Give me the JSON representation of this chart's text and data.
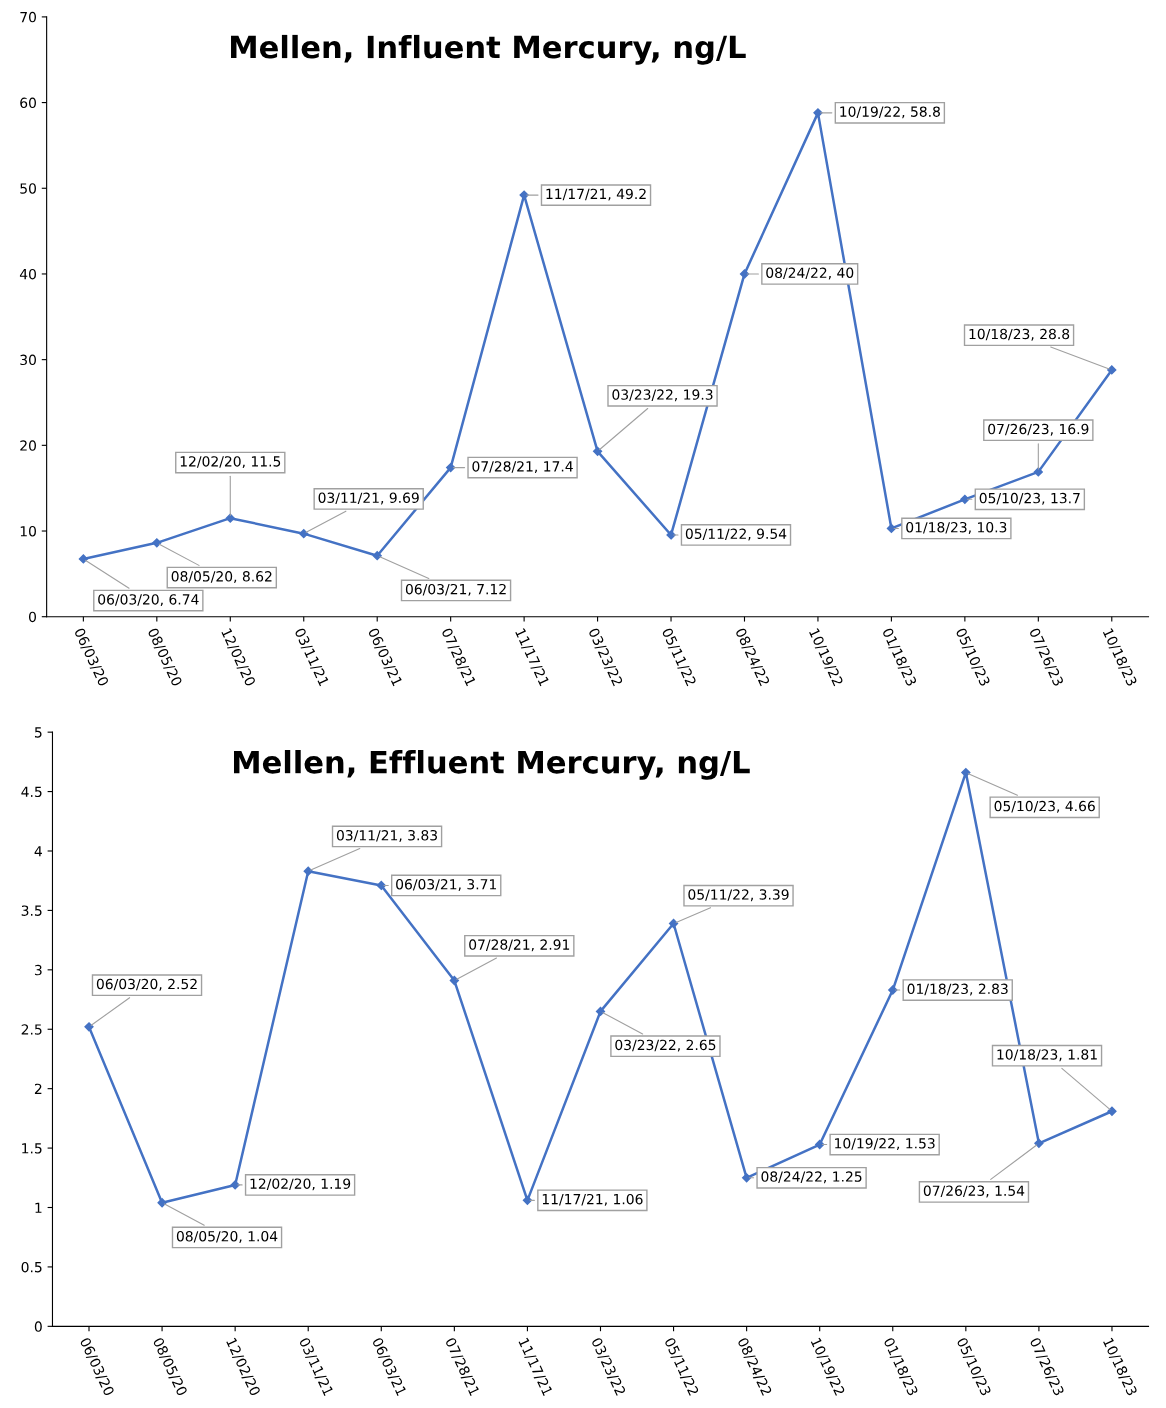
{
  "chart_data": [
    {
      "type": "line",
      "title": "Mellen, Influent Mercury, ng/L",
      "categories": [
        "06/03/20",
        "08/05/20",
        "12/02/20",
        "03/11/21",
        "06/03/21",
        "07/28/21",
        "11/17/21",
        "03/23/22",
        "05/11/22",
        "08/24/22",
        "10/19/22",
        "01/18/23",
        "05/10/23",
        "07/26/23",
        "10/18/23"
      ],
      "ylim": [
        0,
        70
      ],
      "yticks": [
        0,
        10,
        20,
        30,
        40,
        50,
        60,
        70
      ],
      "marker": "diamond",
      "grid": false,
      "series": [
        {
          "color": "#4472c4",
          "values": [
            6.74,
            8.62,
            11.5,
            9.69,
            7.12,
            17.4,
            49.2,
            19.3,
            9.54,
            40,
            58.8,
            10.3,
            13.7,
            16.9,
            28.8
          ],
          "value_labels": [
            "06/03/20, 6.74",
            "08/05/20, 8.62",
            "12/02/20, 11.5",
            "03/11/21, 9.69",
            "06/03/21, 7.12",
            "07/28/21, 17.4",
            "11/17/21, 49.2",
            "03/23/22, 19.3",
            "05/11/22, 9.54",
            "08/24/22, 40",
            "10/19/22, 58.8",
            "01/18/23, 10.3",
            "05/10/23, 13.7",
            "07/26/23, 16.9",
            "10/18/23, 28.8"
          ]
        }
      ]
    },
    {
      "type": "line",
      "title": "Mellen, Effluent Mercury, ng/L",
      "categories": [
        "06/03/20",
        "08/05/20",
        "12/02/20",
        "03/11/21",
        "06/03/21",
        "07/28/21",
        "11/17/21",
        "03/23/22",
        "05/11/22",
        "08/24/22",
        "10/19/22",
        "01/18/23",
        "05/10/23",
        "07/26/23",
        "10/18/23"
      ],
      "ylim": [
        0,
        5
      ],
      "yticks": [
        0,
        0.5,
        1,
        1.5,
        2,
        2.5,
        3,
        3.5,
        4,
        4.5,
        5
      ],
      "marker": "diamond",
      "grid": false,
      "series": [
        {
          "color": "#4472c4",
          "values": [
            2.52,
            1.04,
            1.19,
            3.83,
            3.71,
            2.91,
            1.06,
            2.65,
            3.39,
            1.25,
            1.53,
            2.83,
            4.66,
            1.54,
            1.81
          ],
          "value_labels": [
            "06/03/20, 2.52",
            "08/05/20, 1.04",
            "12/02/20, 1.19",
            "03/11/21, 3.83",
            "06/03/21, 3.71",
            "07/28/21, 2.91",
            "11/17/21, 1.06",
            "03/23/22, 2.65",
            "05/11/22, 3.39",
            "08/24/22, 1.25",
            "10/19/22, 1.53",
            "01/18/23, 2.83",
            "05/10/23, 4.66",
            "07/26/23, 1.54",
            "10/18/23, 1.81"
          ]
        }
      ]
    }
  ]
}
